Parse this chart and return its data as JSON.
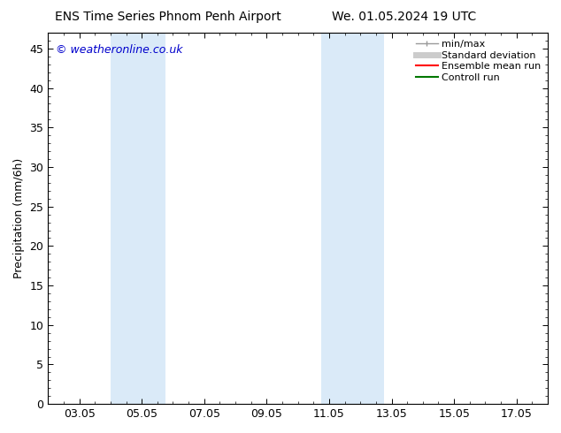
{
  "title_left": "ENS Time Series Phnom Penh Airport",
  "title_right": "We. 01.05.2024 19 UTC",
  "ylabel": "Precipitation (mm/6h)",
  "watermark": "© weatheronline.co.uk",
  "watermark_color": "#0000cc",
  "xlim_start": 2.0,
  "xlim_end": 18.0,
  "ylim_min": 0,
  "ylim_max": 47,
  "yticks": [
    0,
    5,
    10,
    15,
    20,
    25,
    30,
    35,
    40,
    45
  ],
  "xtick_labels": [
    "03.05",
    "05.05",
    "07.05",
    "09.05",
    "11.05",
    "13.05",
    "15.05",
    "17.05"
  ],
  "xtick_positions": [
    3,
    5,
    7,
    9,
    11,
    13,
    15,
    17
  ],
  "shaded_bands": [
    {
      "x_start": 4.0,
      "x_end": 5.75,
      "color": "#daeaf8"
    },
    {
      "x_start": 10.75,
      "x_end": 12.75,
      "color": "#daeaf8"
    }
  ],
  "legend_entries": [
    {
      "label": "min/max",
      "color": "#999999",
      "lw": 1.0,
      "style": "solid",
      "type": "minmax"
    },
    {
      "label": "Standard deviation",
      "color": "#cccccc",
      "lw": 5,
      "style": "solid",
      "type": "band"
    },
    {
      "label": "Ensemble mean run",
      "color": "#ff0000",
      "lw": 1.5,
      "style": "solid",
      "type": "line"
    },
    {
      "label": "Controll run",
      "color": "#007700",
      "lw": 1.5,
      "style": "solid",
      "type": "line"
    }
  ],
  "bg_color": "#ffffff",
  "plot_bg_color": "#ffffff",
  "border_color": "#000000",
  "tick_color": "#000000",
  "label_fontsize": 9,
  "tick_fontsize": 9,
  "title_fontsize": 10,
  "watermark_fontsize": 9
}
